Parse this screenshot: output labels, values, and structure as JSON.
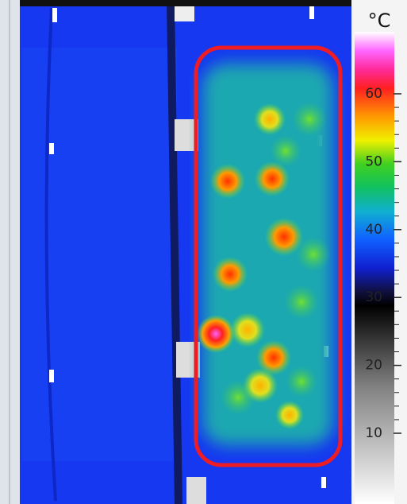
{
  "colorbar": {
    "unit": "°C",
    "ticks": [
      60,
      50,
      40,
      30,
      20,
      10
    ]
  }
}
